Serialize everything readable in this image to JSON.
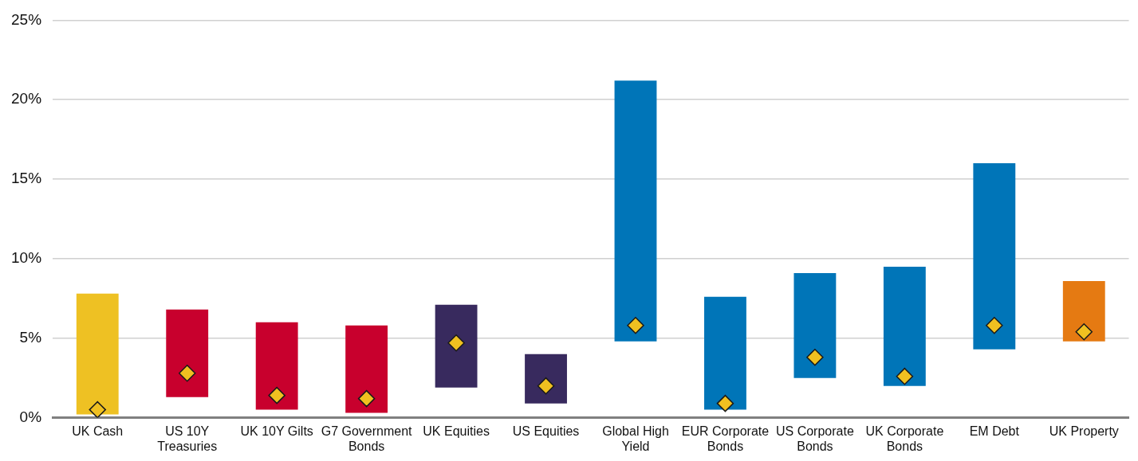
{
  "chart_data": {
    "type": "bar",
    "categories": [
      "UK Cash",
      "US 10Y Treasuries",
      "UK 10Y Gilts",
      "G7 Government Bonds",
      "UK Equities",
      "US Equities",
      "Global High Yield",
      "EUR Corporate Bonds",
      "US Corporate Bonds",
      "UK Corporate Bonds",
      "EM Debt",
      "UK Property"
    ],
    "series": [
      {
        "base": [
          0.2,
          1.3,
          0.5,
          0.3,
          1.9,
          0.9,
          4.8,
          0.5,
          2.5,
          2.0,
          4.3,
          4.8
        ],
        "colors": [
          "#eec123",
          "#c8002d",
          "#c8002d",
          "#c8002d",
          "#382a5e",
          "#382a5e",
          "#0075b8",
          "#0075b8",
          "#0075b8",
          "#0075b8",
          "#0075b8",
          "#e57a12"
        ],
        "values": [
          7.6,
          5.5,
          5.5,
          5.5,
          5.2,
          3.1,
          16.4,
          7.1,
          6.6,
          7.5,
          11.7,
          3.8
        ]
      },
      {
        "type": "scatter",
        "color": "#f0c020",
        "x": [
          "UK Cash",
          "US 10Y Treasuries",
          "UK 10Y Gilts",
          "G7 Government Bonds",
          "UK Equities",
          "US Equities",
          "Global High Yield",
          "EUR Corporate Bonds",
          "US Corporate Bonds",
          "UK Corporate Bonds",
          "EM Debt",
          "UK Property"
        ],
        "values": [
          0.5,
          2.8,
          1.4,
          1.2,
          4.7,
          2.0,
          5.8,
          0.9,
          3.8,
          2.6,
          5.8,
          5.4
        ]
      }
    ],
    "marker": "diamond",
    "ylim": [
      0,
      25
    ],
    "yticks": [
      {
        "value": 0,
        "label": "0%"
      },
      {
        "value": 5,
        "label": "5%"
      },
      {
        "value": 10,
        "label": "10%"
      },
      {
        "value": 15,
        "label": "15%"
      },
      {
        "value": 20,
        "label": "20%"
      },
      {
        "value": 25,
        "label": "25%"
      }
    ],
    "grid": "y",
    "legend": false
  }
}
